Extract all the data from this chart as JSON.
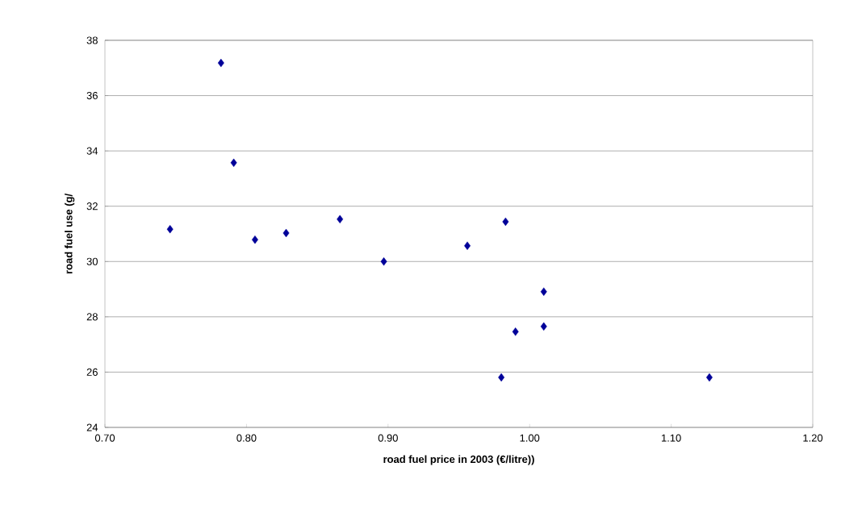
{
  "chart_data": {
    "type": "scatter",
    "xlabel": "road fuel price in 2003 (€/litre))",
    "ylabel": "road fuel use (g/",
    "x": [
      0.746,
      0.782,
      0.791,
      0.806,
      0.828,
      0.866,
      0.897,
      0.956,
      0.983,
      0.98,
      0.99,
      1.01,
      1.01,
      1.127
    ],
    "values": [
      31.17,
      37.18,
      33.57,
      30.79,
      31.03,
      31.53,
      30.0,
      30.57,
      31.44,
      25.81,
      27.46,
      27.65,
      28.91,
      25.81
    ],
    "color": "#000099",
    "marker": "diamond",
    "grid": "y",
    "xlim": [
      0.7,
      1.2
    ],
    "xticks": [
      {
        "value": 0.7,
        "label": "0.70"
      },
      {
        "value": 0.8,
        "label": "0.80"
      },
      {
        "value": 0.9,
        "label": "0.90"
      },
      {
        "value": 1.0,
        "label": "1.00"
      },
      {
        "value": 1.1,
        "label": "1.10"
      },
      {
        "value": 1.2,
        "label": "1.20"
      }
    ],
    "ylim": [
      24,
      38
    ],
    "yticks": [
      24,
      26,
      28,
      30,
      32,
      34,
      36,
      38
    ]
  }
}
